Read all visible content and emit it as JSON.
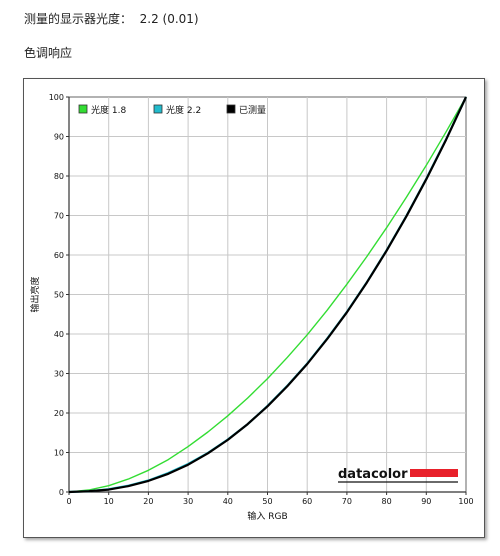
{
  "header": {
    "measured_gamma": "测量的显示器光度：  2.2 (0.01)",
    "section_title": "色调响应"
  },
  "chart_data": {
    "type": "line",
    "title": "",
    "xlabel": "输入 RGB",
    "ylabel": "输出亮度",
    "xlim": [
      0,
      100
    ],
    "ylim": [
      0,
      100
    ],
    "x_ticks": [
      0,
      10,
      20,
      30,
      40,
      50,
      60,
      70,
      80,
      90,
      100
    ],
    "y_ticks": [
      0,
      10,
      20,
      30,
      40,
      50,
      60,
      70,
      80,
      90,
      100
    ],
    "grid": true,
    "legend_position": "top-left",
    "x": [
      0,
      5,
      10,
      15,
      20,
      25,
      30,
      35,
      40,
      45,
      50,
      55,
      60,
      65,
      70,
      75,
      80,
      85,
      90,
      95,
      100
    ],
    "series": [
      {
        "name": "光度 1.8",
        "color": "#33dd33",
        "values": [
          0,
          0.5,
          1.6,
          3.3,
          5.5,
          8.2,
          11.5,
          15.2,
          19.3,
          23.8,
          28.7,
          34.1,
          39.8,
          46.0,
          52.6,
          59.6,
          66.9,
          74.6,
          82.7,
          91.2,
          100
        ]
      },
      {
        "name": "光度 2.2",
        "color": "#22bbcc",
        "values": [
          0,
          0.2,
          0.7,
          1.6,
          2.9,
          4.8,
          7.1,
          9.9,
          13.3,
          17.2,
          21.8,
          26.9,
          32.5,
          38.8,
          45.6,
          53.1,
          61.2,
          69.9,
          79.3,
          89.3,
          100
        ]
      },
      {
        "name": "已测量",
        "color": "#000000",
        "values": [
          0,
          0.2,
          0.6,
          1.5,
          2.8,
          4.6,
          6.9,
          9.8,
          13.2,
          17.2,
          21.7,
          26.8,
          32.4,
          38.7,
          45.5,
          53.0,
          61.1,
          69.8,
          79.2,
          89.2,
          100
        ]
      }
    ],
    "logo": "datacolor",
    "logo_accent": "#e8202a",
    "grid_color": "#c8c8c8",
    "plot_background": "#ffffff"
  }
}
